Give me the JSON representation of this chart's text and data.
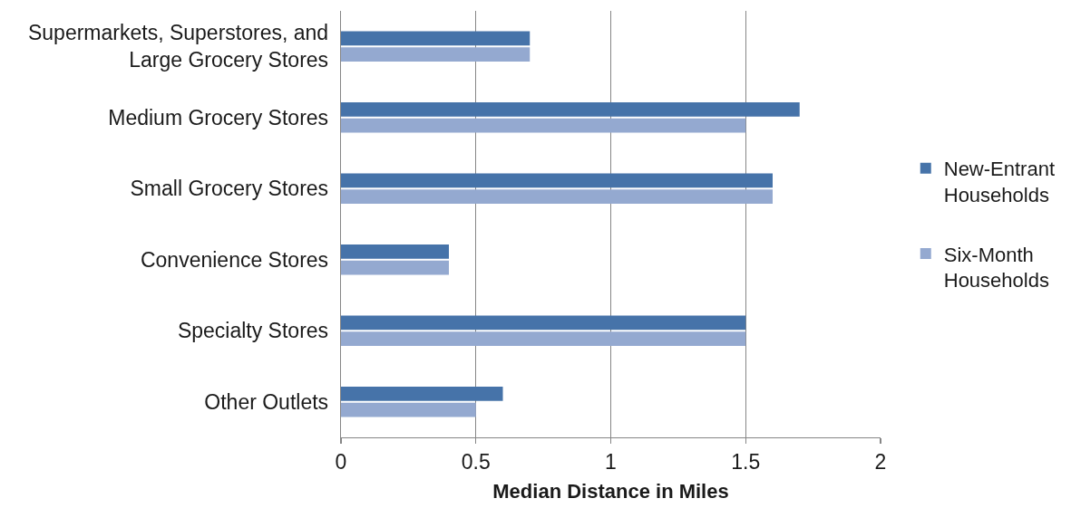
{
  "chart_data": {
    "type": "bar",
    "orientation": "horizontal",
    "xlabel": "Median Distance in Miles",
    "categories": [
      "Supermarkets, Superstores, and Large Grocery Stores",
      "Medium Grocery Stores",
      "Small Grocery Stores",
      "Convenience Stores",
      "Specialty Stores",
      "Other Outlets"
    ],
    "series": [
      {
        "name": "New-Entrant Households",
        "color": "#4673a9",
        "values": [
          0.7,
          1.7,
          1.6,
          0.4,
          1.5,
          0.6
        ]
      },
      {
        "name": "Six-Month Households",
        "color": "#94a9d0",
        "values": [
          0.7,
          1.5,
          1.6,
          0.4,
          1.5,
          0.5
        ]
      }
    ],
    "xlim": [
      0,
      2
    ],
    "xticks": [
      0,
      0.5,
      1,
      1.5,
      2
    ],
    "grid": "x",
    "legend": "right"
  }
}
